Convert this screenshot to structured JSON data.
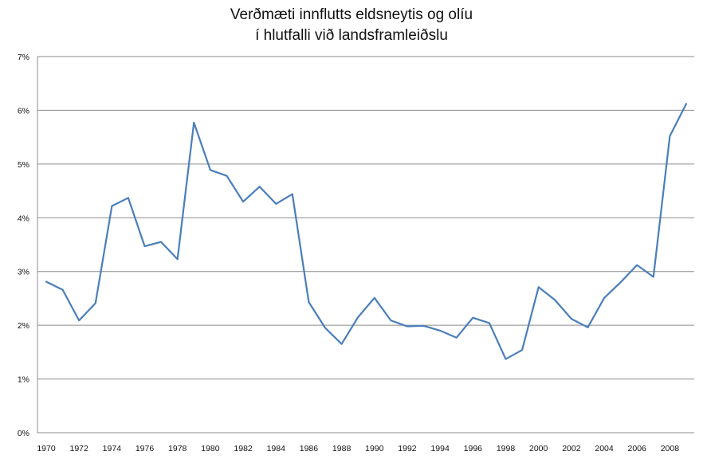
{
  "chart_data": {
    "type": "line",
    "title": [
      "Verðmæti innflutts eldsneytis og olíu",
      "í hlutfalli við landsframleiðslu"
    ],
    "xlabel": "",
    "ylabel": "",
    "ylim": [
      0,
      7
    ],
    "ytick_labels": [
      "0%",
      "1%",
      "2%",
      "3%",
      "4%",
      "5%",
      "6%",
      "7%"
    ],
    "xtick_labels": [
      "1970",
      "1972",
      "1974",
      "1976",
      "1978",
      "1980",
      "1982",
      "1984",
      "1986",
      "1988",
      "1990",
      "1992",
      "1994",
      "1996",
      "1998",
      "2000",
      "2002",
      "2004",
      "2006",
      "2008"
    ],
    "grid": "horizontal",
    "series_color": "#4a7ebb",
    "x": [
      1970,
      1971,
      1972,
      1973,
      1974,
      1975,
      1976,
      1977,
      1978,
      1979,
      1980,
      1981,
      1982,
      1983,
      1984,
      1985,
      1986,
      1987,
      1988,
      1989,
      1990,
      1991,
      1992,
      1993,
      1994,
      1995,
      1996,
      1997,
      1998,
      1999,
      2000,
      2001,
      2002,
      2003,
      2004,
      2005,
      2006,
      2007,
      2008,
      2009
    ],
    "values": [
      2.81,
      2.66,
      2.09,
      2.41,
      4.22,
      4.37,
      3.47,
      3.55,
      3.23,
      5.77,
      4.89,
      4.78,
      4.3,
      4.58,
      4.26,
      4.44,
      2.43,
      1.95,
      1.65,
      2.15,
      2.51,
      2.09,
      1.98,
      1.99,
      1.9,
      1.77,
      2.14,
      2.04,
      1.37,
      1.54,
      2.71,
      2.47,
      2.12,
      1.96,
      2.51,
      2.8,
      3.12,
      2.9,
      5.52,
      6.12
    ]
  }
}
